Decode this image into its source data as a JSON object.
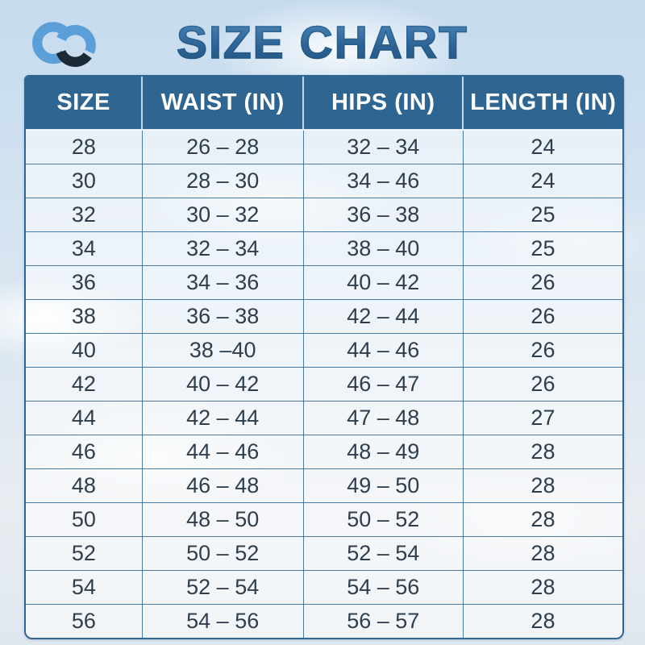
{
  "header": {
    "title": "SIZE CHART",
    "logo": "cc-brand-logo"
  },
  "colors": {
    "title_blue_top": "#4e8cbd",
    "title_blue_bottom": "#1e557e",
    "header_row_bg": "#2e6591",
    "table_border": "#2f6592",
    "cell_text": "#2f3e4c",
    "logo_light_blue": "#5b9fd8",
    "logo_dark": "#1c2a35",
    "sky_top": "#c6dbee",
    "sky_bottom": "#e0e8ef"
  },
  "chart_data": {
    "type": "table",
    "title": "SIZE CHART",
    "columns": [
      "SIZE",
      "WAIST (IN)",
      "HIPS (IN)",
      "LENGTH (IN)"
    ],
    "rows": [
      [
        "28",
        "26 – 28",
        "32 – 34",
        "24"
      ],
      [
        "30",
        "28 – 30",
        "34 – 46",
        "24"
      ],
      [
        "32",
        "30 – 32",
        "36 – 38",
        "25"
      ],
      [
        "34",
        "32 – 34",
        "38 – 40",
        "25"
      ],
      [
        "36",
        "34 – 36",
        "40 – 42",
        "26"
      ],
      [
        "38",
        "36 – 38",
        "42 – 44",
        "26"
      ],
      [
        "40",
        "38 –40",
        "44 – 46",
        "26"
      ],
      [
        "42",
        "40 – 42",
        "46 – 47",
        "26"
      ],
      [
        "44",
        "42 – 44",
        "47 – 48",
        "27"
      ],
      [
        "46",
        "44 – 46",
        "48 – 49",
        "28"
      ],
      [
        "48",
        "46 – 48",
        "49 – 50",
        "28"
      ],
      [
        "50",
        "48 – 50",
        "50 – 52",
        "28"
      ],
      [
        "52",
        "50 – 52",
        "52 – 54",
        "28"
      ],
      [
        "54",
        "52 – 54",
        "54 – 56",
        "28"
      ],
      [
        "56",
        "54 – 56",
        "56 – 57",
        "28"
      ]
    ]
  }
}
